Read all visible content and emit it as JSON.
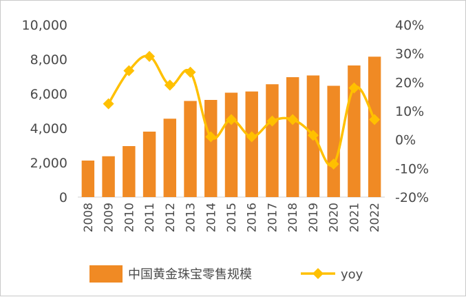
{
  "chart_data": {
    "type": "bar+line",
    "categories": [
      "2008",
      "2009",
      "2010",
      "2011",
      "2012",
      "2013",
      "2014",
      "2015",
      "2016",
      "2017",
      "2018",
      "2019",
      "2020",
      "2021",
      "2022"
    ],
    "series": [
      {
        "name": "中国黄金珠宝零售规模",
        "type": "bar",
        "axis": "left",
        "color": "#F08A24",
        "values": [
          2120,
          2370,
          2960,
          3800,
          4550,
          5580,
          5640,
          6060,
          6130,
          6550,
          6960,
          7060,
          6460,
          7640,
          8150
        ]
      },
      {
        "name": "yoy",
        "type": "line",
        "axis": "right",
        "color": "#FFC000",
        "values": [
          null,
          0.125,
          0.24,
          0.29,
          0.19,
          0.235,
          0.01,
          0.07,
          0.01,
          0.065,
          0.07,
          0.015,
          -0.085,
          0.18,
          0.07
        ]
      }
    ],
    "y_left": {
      "min": 0,
      "max": 10000,
      "ticks": [
        "0",
        "2,000",
        "4,000",
        "6,000",
        "8,000",
        "10,000"
      ]
    },
    "y_right": {
      "min": -0.2,
      "max": 0.4,
      "ticks": [
        "-20%",
        "-10%",
        "0%",
        "10%",
        "20%",
        "30%",
        "40%"
      ]
    },
    "legend": {
      "placement": "bottom"
    },
    "grid": false
  }
}
